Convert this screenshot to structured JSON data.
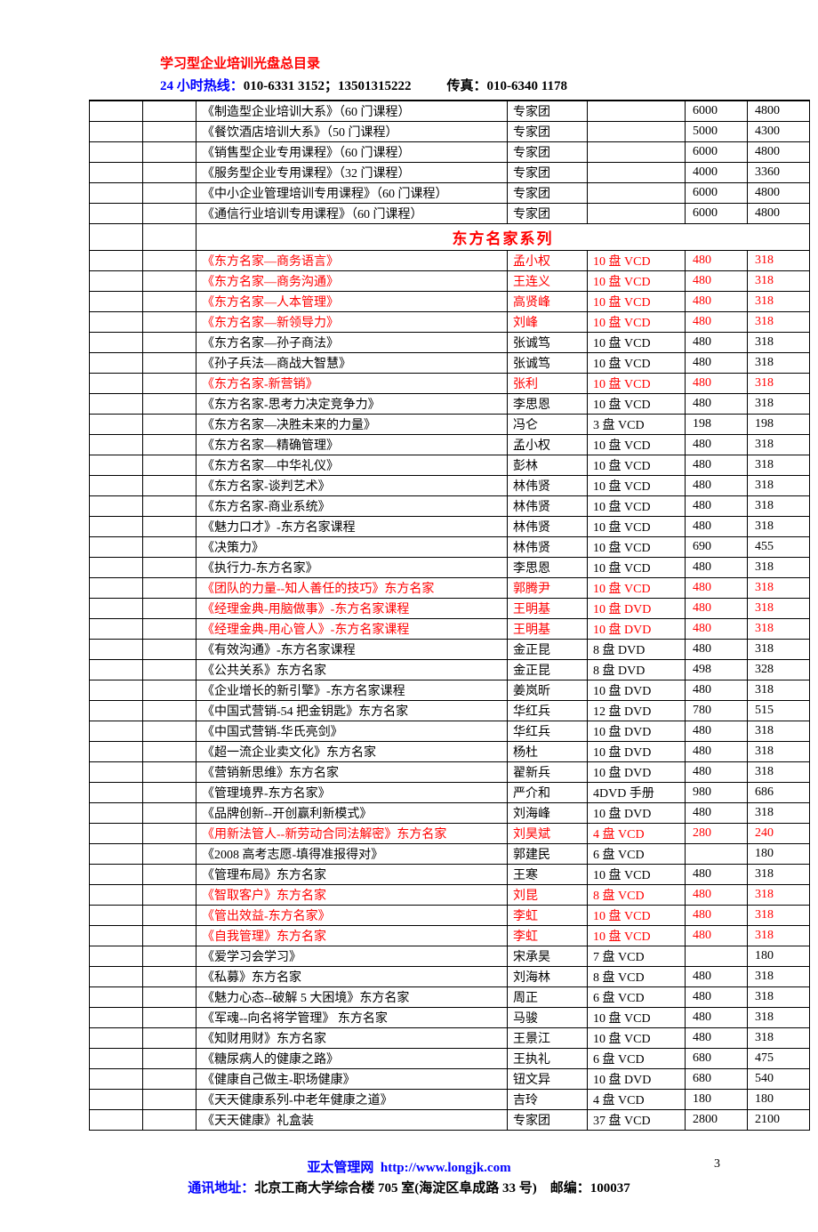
{
  "header": {
    "title": "学习型企业培训光盘总目录",
    "hotline_label": "24 小时热线：",
    "hotline_phone1": "010-6331 3152；13501315222",
    "fax_label": "传真：",
    "fax_number": "010-6340 1178"
  },
  "table": {
    "top_rows": [
      {
        "title": "《制造型企业培训大系》（60 门课程）",
        "author": "专家团",
        "media": "",
        "p1": "6000",
        "p2": "4800",
        "red": false
      },
      {
        "title": "《餐饮酒店培训大系》（50 门课程）",
        "author": "专家团",
        "media": "",
        "p1": "5000",
        "p2": "4300",
        "red": false
      },
      {
        "title": "《销售型企业专用课程》（60 门课程）",
        "author": "专家团",
        "media": "",
        "p1": "6000",
        "p2": "4800",
        "red": false
      },
      {
        "title": "《服务型企业专用课程》（32 门课程）",
        "author": "专家团",
        "media": "",
        "p1": "4000",
        "p2": "3360",
        "red": false
      },
      {
        "title": "《中小企业管理培训专用课程》（60 门课程）",
        "author": "专家团",
        "media": "",
        "p1": "6000",
        "p2": "4800",
        "red": false
      },
      {
        "title": "《通信行业培训专用课程》（60 门课程）",
        "author": "专家团",
        "media": "",
        "p1": "6000",
        "p2": "4800",
        "red": false
      }
    ],
    "section_title": "东方名家系列",
    "rows": [
      {
        "title": "《东方名家—商务语言》",
        "author": "孟小权",
        "media": "10 盘 VCD",
        "p1": "480",
        "p2": "318",
        "red": true
      },
      {
        "title": "《东方名家—商务沟通》",
        "author": "王连义",
        "media": "10 盘 VCD",
        "p1": "480",
        "p2": "318",
        "red": true
      },
      {
        "title": "《东方名家—人本管理》",
        "author": "高贤峰",
        "media": "10 盘 VCD",
        "p1": "480",
        "p2": "318",
        "red": true
      },
      {
        "title": "《东方名家—新领导力》",
        "author": "刘峰",
        "media": "10 盘 VCD",
        "p1": "480",
        "p2": "318",
        "red": true
      },
      {
        "title": "《东方名家—孙子商法》",
        "author": "张诚笃",
        "media": "10 盘 VCD",
        "p1": "480",
        "p2": "318",
        "red": false
      },
      {
        "title": "《孙子兵法—商战大智慧》",
        "author": "张诚笃",
        "media": "10 盘 VCD",
        "p1": "480",
        "p2": "318",
        "red": false
      },
      {
        "title": "《东方名家-新营销》",
        "author": "张利",
        "media": "10 盘 VCD",
        "p1": "480",
        "p2": "318",
        "red": true
      },
      {
        "title": "《东方名家-思考力决定竞争力》",
        "author": "李思恩",
        "media": "10 盘 VCD",
        "p1": "480",
        "p2": "318",
        "red": false
      },
      {
        "title": "《东方名家—决胜未来的力量》",
        "author": "冯仑",
        "media": "3 盘 VCD",
        "p1": "198",
        "p2": "198",
        "red": false
      },
      {
        "title": "《东方名家—精确管理》",
        "author": "孟小权",
        "media": "10 盘 VCD",
        "p1": "480",
        "p2": "318",
        "red": false
      },
      {
        "title": "《东方名家—中华礼仪》",
        "author": "彭林",
        "media": "10 盘 VCD",
        "p1": "480",
        "p2": "318",
        "red": false
      },
      {
        "title": "《东方名家-谈判艺术》",
        "author": "林伟贤",
        "media": "10 盘 VCD",
        "p1": "480",
        "p2": "318",
        "red": false
      },
      {
        "title": "《东方名家-商业系统》",
        "author": "林伟贤",
        "media": "10 盘 VCD",
        "p1": "480",
        "p2": "318",
        "red": false
      },
      {
        "title": "《魅力口才》-东方名家课程",
        "author": "林伟贤",
        "media": "10 盘 VCD",
        "p1": "480",
        "p2": "318",
        "red": false
      },
      {
        "title": "《决策力》",
        "author": "林伟贤",
        "media": "10 盘 VCD",
        "p1": "690",
        "p2": "455",
        "red": false
      },
      {
        "title": "《执行力-东方名家》",
        "author": "李思恩",
        "media": "10 盘 VCD",
        "p1": "480",
        "p2": "318",
        "red": false
      },
      {
        "title": "《团队的力量--知人善任的技巧》东方名家",
        "author": "郭腾尹",
        "media": "10 盘 VCD",
        "p1": "480",
        "p2": "318",
        "red": true
      },
      {
        "title": "《经理金典-用脑做事》-东方名家课程",
        "author": "王明基",
        "media": "10 盘 DVD",
        "p1": "480",
        "p2": "318",
        "red": true
      },
      {
        "title": "《经理金典-用心管人》-东方名家课程",
        "author": "王明基",
        "media": "10 盘 DVD",
        "p1": "480",
        "p2": "318",
        "red": true
      },
      {
        "title": "《有效沟通》-东方名家课程",
        "author": "金正昆",
        "media": "8 盘 DVD",
        "p1": "480",
        "p2": "318",
        "red": false
      },
      {
        "title": "《公共关系》东方名家",
        "author": "金正昆",
        "media": "8 盘 DVD",
        "p1": "498",
        "p2": "328",
        "red": false
      },
      {
        "title": "《企业增长的新引擎》-东方名家课程",
        "author": "姜岚昕",
        "media": "10 盘 DVD",
        "p1": "480",
        "p2": "318",
        "red": false
      },
      {
        "title": "《中国式营销-54 把金钥匙》东方名家",
        "author": "华红兵",
        "media": "12 盘 DVD",
        "p1": "780",
        "p2": "515",
        "red": false
      },
      {
        "title": "《中国式营销-华氏亮剑》",
        "author": "华红兵",
        "media": "10 盘 DVD",
        "p1": "480",
        "p2": "318",
        "red": false
      },
      {
        "title": "《超一流企业卖文化》东方名家",
        "author": "杨杜",
        "media": "10 盘 DVD",
        "p1": "480",
        "p2": "318",
        "red": false
      },
      {
        "title": "《营销新思维》东方名家",
        "author": "翟新兵",
        "media": "10 盘 DVD",
        "p1": "480",
        "p2": "318",
        "red": false
      },
      {
        "title": "《管理境界-东方名家》",
        "author": "严介和",
        "media": "4DVD 手册",
        "p1": "980",
        "p2": "686",
        "red": false
      },
      {
        "title": "《品牌创新--开创赢利新模式》",
        "author": "刘海峰",
        "media": "10 盘 DVD",
        "p1": "480",
        "p2": "318",
        "red": false
      },
      {
        "title": "《用新法管人--新劳动合同法解密》东方名家",
        "author": "刘昊斌",
        "media": "4 盘 VCD",
        "p1": "280",
        "p2": "240",
        "red": true
      },
      {
        "title": "《2008 高考志愿-填得准报得对》",
        "author": "郭建民",
        "media": "6 盘 VCD",
        "p1": "",
        "p2": "180",
        "red": false
      },
      {
        "title": "《管理布局》东方名家",
        "author": "王寒",
        "media": "10 盘 VCD",
        "p1": "480",
        "p2": "318",
        "red": false
      },
      {
        "title": "《智取客户》东方名家",
        "author": "刘昆",
        "media": "8 盘 VCD",
        "p1": "480",
        "p2": "318",
        "red": true
      },
      {
        "title": "《管出效益-东方名家》",
        "author": "李虹",
        "media": "10 盘 VCD",
        "p1": "480",
        "p2": "318",
        "red": true
      },
      {
        "title": "《自我管理》东方名家",
        "author": "李虹",
        "media": "10 盘 VCD",
        "p1": "480",
        "p2": "318",
        "red": true
      },
      {
        "title": "《爱学习会学习》",
        "author": "宋承昊",
        "media": "7 盘 VCD",
        "p1": "",
        "p2": "180",
        "red": false
      },
      {
        "title": "《私募》东方名家",
        "author": "刘海林",
        "media": "8 盘 VCD",
        "p1": "480",
        "p2": "318",
        "red": false
      },
      {
        "title": "《魅力心态--破解 5 大困境》东方名家",
        "author": "周正",
        "media": "6 盘 VCD",
        "p1": "480",
        "p2": "318",
        "red": false
      },
      {
        "title": "《军魂--向名将学管理》  东方名家",
        "author": "马骏",
        "media": "10 盘 VCD",
        "p1": "480",
        "p2": "318",
        "red": false
      },
      {
        "title": "《知财用财》东方名家",
        "author": "王景江",
        "media": "10 盘 VCD",
        "p1": "480",
        "p2": "318",
        "red": false
      },
      {
        "title": "《糖尿病人的健康之路》",
        "author": "王执礼",
        "media": "6 盘 VCD",
        "p1": "680",
        "p2": "475",
        "red": false
      },
      {
        "title": "《健康自己做主-职场健康》",
        "author": "钮文异",
        "media": "10 盘 DVD",
        "p1": "680",
        "p2": "540",
        "red": false
      },
      {
        "title": "《天天健康系列-中老年健康之道》",
        "author": "吉玲",
        "media": "4 盘 VCD",
        "p1": "180",
        "p2": "180",
        "red": false
      },
      {
        "title": "《天天健康》礼盒装",
        "author": "专家团",
        "media": "37 盘 VCD",
        "p1": "2800",
        "p2": "2100",
        "red": false
      }
    ]
  },
  "footer": {
    "site_name": "亚太管理网",
    "site_url": "http://www.longjk.com",
    "addr_label": "通讯地址：",
    "addr": "北京工商大学综合楼 705 室(海淀区阜成路 33 号)",
    "zip_label": "邮编：",
    "zip": "100037",
    "page_num": "3"
  }
}
